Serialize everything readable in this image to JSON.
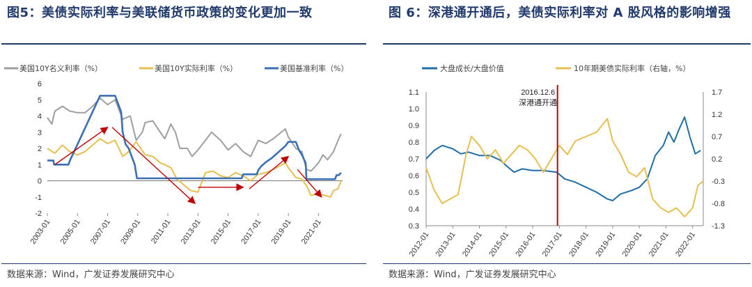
{
  "colors": {
    "title": "#1f3a6b",
    "gray": "#9e9e9e",
    "gold": "#e5bf4f",
    "blue": "#3b6fb4",
    "blue_dark": "#1f6ea8",
    "red": "#c00000"
  },
  "chart_data": [
    {
      "type": "line",
      "figure_label": "图5",
      "title": "美债实际利率与美联储货币政策的变化更加一致",
      "source": "数据来源：Wind，广发证券发展研究中心",
      "x_ticks": [
        "2003-01",
        "2005-01",
        "2007-01",
        "2009-01",
        "2011-01",
        "2013-01",
        "2015-01",
        "2017-01",
        "2019-01",
        "2021-01"
      ],
      "x_range": [
        2003.0,
        2022.6
      ],
      "ylim": [
        -2,
        6
      ],
      "y_ticks": [
        "-2",
        "-1",
        "0",
        "1",
        "2",
        "3",
        "4",
        "5",
        "6"
      ],
      "series": [
        {
          "name": "美国10Y名义利率（%）",
          "color": "gray",
          "x": [
            2003.0,
            2003.3,
            2003.5,
            2004.0,
            2004.5,
            2005.0,
            2005.5,
            2006.0,
            2006.5,
            2007.0,
            2007.5,
            2008.0,
            2008.5,
            2008.9,
            2009.3,
            2009.5,
            2010.0,
            2010.5,
            2010.8,
            2011.2,
            2011.5,
            2011.8,
            2012.3,
            2012.6,
            2013.0,
            2013.5,
            2013.9,
            2014.5,
            2015.0,
            2015.5,
            2016.0,
            2016.5,
            2017.0,
            2017.5,
            2018.0,
            2018.8,
            2019.0,
            2019.5,
            2019.9,
            2020.2,
            2020.5,
            2021.0,
            2021.3,
            2021.6,
            2022.0,
            2022.3,
            2022.5
          ],
          "values": [
            3.9,
            3.5,
            4.3,
            4.6,
            4.3,
            4.2,
            4.2,
            4.6,
            5.1,
            4.7,
            5.0,
            3.8,
            4.0,
            2.5,
            3.0,
            3.6,
            3.7,
            3.0,
            2.6,
            3.5,
            3.0,
            2.0,
            2.0,
            1.5,
            1.9,
            2.5,
            3.0,
            2.5,
            1.9,
            2.3,
            1.8,
            1.5,
            2.5,
            2.3,
            2.6,
            3.2,
            2.7,
            2.0,
            1.8,
            0.7,
            0.6,
            1.1,
            1.6,
            1.3,
            1.8,
            2.5,
            2.9
          ]
        },
        {
          "name": "美国10Y实际利率（%）",
          "color": "gold",
          "x": [
            2003.0,
            2003.5,
            2004.0,
            2004.5,
            2005.0,
            2005.5,
            2006.0,
            2006.5,
            2007.0,
            2007.5,
            2008.0,
            2008.4,
            2008.9,
            2009.2,
            2009.5,
            2010.0,
            2010.5,
            2010.8,
            2011.2,
            2011.6,
            2012.0,
            2012.5,
            2013.0,
            2013.5,
            2014.0,
            2014.5,
            2015.0,
            2015.5,
            2016.0,
            2016.5,
            2017.0,
            2017.5,
            2018.0,
            2018.8,
            2019.0,
            2019.5,
            2019.9,
            2020.2,
            2020.5,
            2021.0,
            2021.4,
            2021.8,
            2022.0,
            2022.3,
            2022.5
          ],
          "values": [
            2.0,
            1.7,
            2.2,
            1.8,
            1.6,
            1.8,
            2.2,
            2.6,
            2.3,
            2.5,
            1.5,
            1.8,
            2.4,
            2.0,
            1.6,
            1.5,
            1.1,
            1.0,
            0.8,
            0.1,
            -0.2,
            -0.6,
            -0.7,
            0.5,
            0.6,
            0.3,
            0.2,
            0.5,
            0.3,
            0.0,
            0.4,
            0.5,
            0.7,
            1.1,
            0.8,
            0.2,
            0.1,
            -0.3,
            -0.9,
            -0.8,
            -0.9,
            -1.0,
            -0.6,
            -0.5,
            0.0
          ]
        },
        {
          "name": "美国基准利率（%）",
          "color": "blue",
          "x": [
            2003.0,
            2003.4,
            2003.45,
            2004.4,
            2004.5,
            2005.0,
            2005.5,
            2006.0,
            2006.5,
            2007.5,
            2007.7,
            2007.9,
            2008.0,
            2008.2,
            2008.4,
            2008.8,
            2008.95,
            2015.9,
            2016.0,
            2016.9,
            2017.0,
            2017.2,
            2017.5,
            2017.9,
            2018.2,
            2018.5,
            2018.8,
            2019.0,
            2019.5,
            2019.6,
            2019.7,
            2019.9,
            2020.15,
            2020.2,
            2022.1,
            2022.2,
            2022.35,
            2022.5
          ],
          "values": [
            1.25,
            1.25,
            1.0,
            1.0,
            1.25,
            2.25,
            3.25,
            4.25,
            5.25,
            5.25,
            4.75,
            4.25,
            3.0,
            2.25,
            2.0,
            1.0,
            0.15,
            0.15,
            0.4,
            0.4,
            0.65,
            0.9,
            1.15,
            1.4,
            1.65,
            1.9,
            2.15,
            2.4,
            2.4,
            2.15,
            1.9,
            1.6,
            1.1,
            0.1,
            0.1,
            0.35,
            0.35,
            0.5
          ]
        }
      ]
    },
    {
      "type": "line",
      "figure_label": "图 6",
      "title": "深港通开通后，美债实际利率对 A 股风格的影响增强",
      "source": "数据来源：Wind，广发证券发展研究中心",
      "annotation": {
        "date": "2016.12.6",
        "text": "深港通开通",
        "x": 2016.93
      },
      "x_ticks": [
        "2012-01",
        "2013-01",
        "2014-01",
        "2015-01",
        "2016-01",
        "2017-01",
        "2018-01",
        "2019-01",
        "2020-01",
        "2021-01",
        "2022-01"
      ],
      "x_range": [
        2012.0,
        2022.4
      ],
      "ylim_left": [
        0.3,
        1.1
      ],
      "ylim_right": [
        -1.3,
        1.7
      ],
      "y_ticks_left": [
        "0.3",
        "0.4",
        "0.5",
        "0.6",
        "0.7",
        "0.8",
        "0.9",
        "1.0",
        "1.1"
      ],
      "y_ticks_right": [
        "-1.3",
        "-0.8",
        "-0.3",
        "0.2",
        "0.7",
        "1.2",
        "1.7"
      ],
      "series": [
        {
          "name": "大盘成长/大盘价值",
          "color": "blue_dark",
          "axis": "left",
          "x": [
            2012.0,
            2012.3,
            2012.6,
            2013.0,
            2013.3,
            2013.6,
            2014.0,
            2014.4,
            2014.8,
            2015.0,
            2015.3,
            2015.6,
            2016.0,
            2016.4,
            2016.9,
            2017.2,
            2017.6,
            2018.0,
            2018.4,
            2018.8,
            2019.0,
            2019.3,
            2019.7,
            2020.0,
            2020.3,
            2020.6,
            2020.9,
            2021.1,
            2021.3,
            2021.5,
            2021.7,
            2021.9,
            2022.1,
            2022.3
          ],
          "values": [
            0.7,
            0.75,
            0.78,
            0.76,
            0.73,
            0.74,
            0.72,
            0.72,
            0.69,
            0.66,
            0.62,
            0.64,
            0.63,
            0.63,
            0.62,
            0.58,
            0.56,
            0.53,
            0.5,
            0.46,
            0.45,
            0.49,
            0.51,
            0.53,
            0.58,
            0.72,
            0.78,
            0.86,
            0.8,
            0.88,
            0.95,
            0.83,
            0.73,
            0.75
          ]
        },
        {
          "name": "10年期美债实际利率（右轴，%）",
          "color": "gold",
          "axis": "right",
          "x": [
            2012.0,
            2012.3,
            2012.6,
            2012.9,
            2013.2,
            2013.5,
            2013.7,
            2014.0,
            2014.3,
            2014.6,
            2014.9,
            2015.2,
            2015.5,
            2015.8,
            2016.1,
            2016.4,
            2016.7,
            2017.0,
            2017.3,
            2017.6,
            2018.0,
            2018.4,
            2018.8,
            2019.0,
            2019.3,
            2019.6,
            2019.9,
            2020.2,
            2020.5,
            2020.8,
            2021.1,
            2021.4,
            2021.7,
            2022.0,
            2022.2,
            2022.4
          ],
          "values": [
            0.0,
            -0.5,
            -0.8,
            -0.7,
            -0.6,
            0.3,
            0.7,
            0.5,
            0.2,
            0.4,
            0.1,
            0.3,
            0.5,
            0.4,
            0.2,
            -0.1,
            0.2,
            0.5,
            0.3,
            0.6,
            0.7,
            0.8,
            1.1,
            0.6,
            0.3,
            -0.1,
            -0.2,
            0.0,
            -0.7,
            -0.9,
            -1.0,
            -0.9,
            -1.1,
            -0.9,
            -0.4,
            -0.3
          ]
        }
      ]
    }
  ]
}
